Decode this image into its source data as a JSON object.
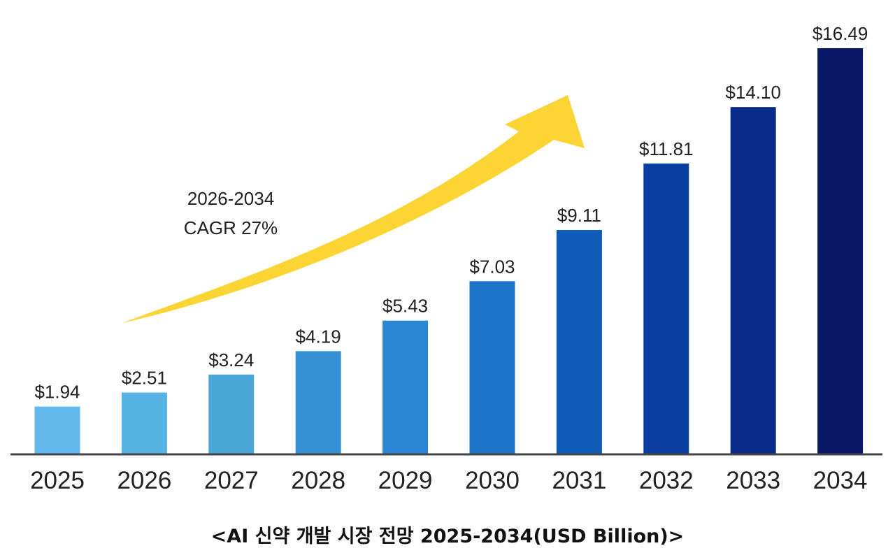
{
  "chart_data": {
    "type": "bar",
    "title": "<AI 신약 개발 시장 전망 2025-2034(USD Billion)>",
    "categories": [
      "2025",
      "2026",
      "2027",
      "2028",
      "2029",
      "2030",
      "2031",
      "2032",
      "2033",
      "2034"
    ],
    "values": [
      1.94,
      2.51,
      3.24,
      4.19,
      5.43,
      7.03,
      9.11,
      11.81,
      14.1,
      16.49
    ],
    "data_labels": [
      "$1.94",
      "$2.51",
      "$3.24",
      "$4.19",
      "$5.43",
      "$7.03",
      "$9.11",
      "$11.81",
      "$14.10",
      "$16.49"
    ],
    "colors": [
      "#62b8ec",
      "#56b2e2",
      "#4aa6d6",
      "#3591d4",
      "#2a86d4",
      "#1e74c8",
      "#0f5cb8",
      "#0a3fa0",
      "#0a2a8a",
      "#0a1868"
    ],
    "xlabel": "",
    "ylabel": "",
    "ylim": [
      0,
      16.49
    ],
    "grid": false,
    "annotation": {
      "line1": "2026-2034",
      "line2": "CAGR 27%",
      "arrow_color": "#fcd535"
    }
  }
}
